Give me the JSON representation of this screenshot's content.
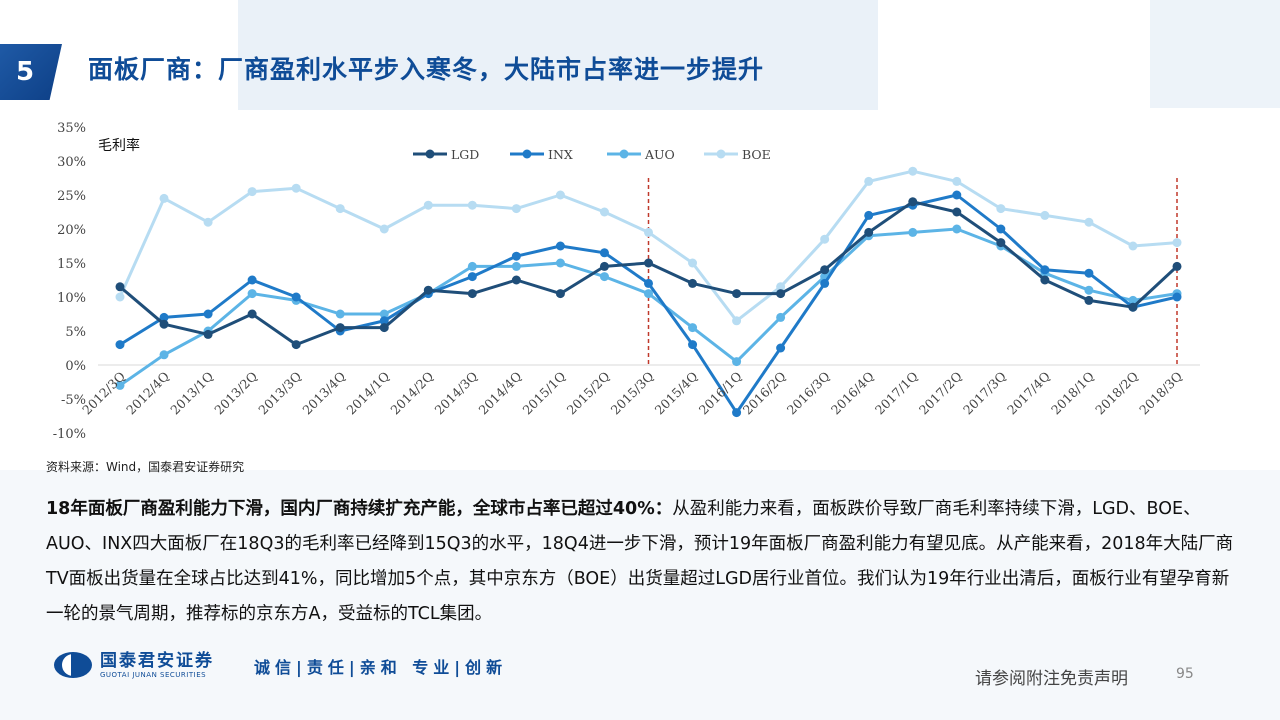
{
  "header": {
    "section_number": "5",
    "title": "面板厂商：厂商盈利水平步入寒冬，大陆市占率进一步提升"
  },
  "chart_data": {
    "type": "line",
    "ylabel": "毛利率",
    "ylim": [
      -10,
      35
    ],
    "yticks": [
      "-10%",
      "-5%",
      "0%",
      "5%",
      "10%",
      "15%",
      "20%",
      "25%",
      "30%",
      "35%"
    ],
    "ytick_values": [
      -10,
      -5,
      0,
      5,
      10,
      15,
      20,
      25,
      30,
      35
    ],
    "categories": [
      "2012/3Q",
      "2012/4Q",
      "2013/1Q",
      "2013/2Q",
      "2013/3Q",
      "2013/4Q",
      "2014/1Q",
      "2014/2Q",
      "2014/3Q",
      "2014/4Q",
      "2015/1Q",
      "2015/2Q",
      "2015/3Q",
      "2015/4Q",
      "2016/1Q",
      "2016/2Q",
      "2016/3Q",
      "2016/4Q",
      "2017/1Q",
      "2017/2Q",
      "2017/3Q",
      "2017/4Q",
      "2018/1Q",
      "2018/2Q",
      "2018/3Q"
    ],
    "legend_position": "top",
    "markers": [
      12,
      24
    ],
    "series": [
      {
        "name": "LGD",
        "color": "#1f4e79",
        "values": [
          11.5,
          6,
          4.5,
          7.5,
          3,
          5.5,
          5.5,
          11,
          10.5,
          12.5,
          10.5,
          14.5,
          15,
          12,
          10.5,
          10.5,
          14,
          19.5,
          24,
          22.5,
          18,
          12.5,
          9.5,
          8.5,
          14.5
        ]
      },
      {
        "name": "INX",
        "color": "#1f7ac8",
        "values": [
          3,
          7,
          7.5,
          12.5,
          10,
          5,
          6.5,
          10.5,
          13,
          16,
          17.5,
          16.5,
          12,
          3,
          -7,
          2.5,
          12,
          22,
          23.5,
          25,
          20,
          14,
          13.5,
          8.5,
          10
        ]
      },
      {
        "name": "AUO",
        "color": "#5cb4e6",
        "values": [
          -3,
          1.5,
          5,
          10.5,
          9.5,
          7.5,
          7.5,
          10.5,
          14.5,
          14.5,
          15,
          13,
          10.5,
          5.5,
          0.5,
          7,
          13,
          19,
          19.5,
          20,
          17.5,
          13.5,
          11,
          9.5,
          10.5
        ]
      },
      {
        "name": "BOE",
        "color": "#b7dcf2",
        "values": [
          10,
          24.5,
          21,
          25.5,
          26,
          23,
          20,
          23.5,
          23.5,
          23,
          25,
          22.5,
          19.5,
          15,
          6.5,
          11.5,
          18.5,
          27,
          28.5,
          27,
          23,
          22,
          21,
          17.5,
          18
        ]
      }
    ]
  },
  "source_text": "资料来源：Wind，国泰君安证券研究",
  "body": {
    "lead_bold": "18年面板厂商盈利能力下滑，国内厂商持续扩充产能，全球市占率已超过40%：",
    "rest": "从盈利能力来看，面板跌价导致厂商毛利率持续下滑，LGD、BOE、AUO、INX四大面板厂在18Q3的毛利率已经降到15Q3的水平，18Q4进一步下滑，预计19年面板厂商盈利能力有望见底。从产能来看，2018年大陆厂商TV面板出货量在全球占比达到41%，同比增加5个点，其中京东方（BOE）出货量超过LGD居行业首位。我们认为19年行业出清后，面板行业有望孕育新一轮的景气周期，推荐标的京东方A，受益标的TCL集团。"
  },
  "footer": {
    "logo_cn": "国泰君安证券",
    "logo_en": "GUOTAI JUNAN SECURITIES",
    "slogan": "诚信|责任|亲和 专业|创新",
    "disclaimer": "请参阅附注免责声明",
    "page_number": "95"
  }
}
